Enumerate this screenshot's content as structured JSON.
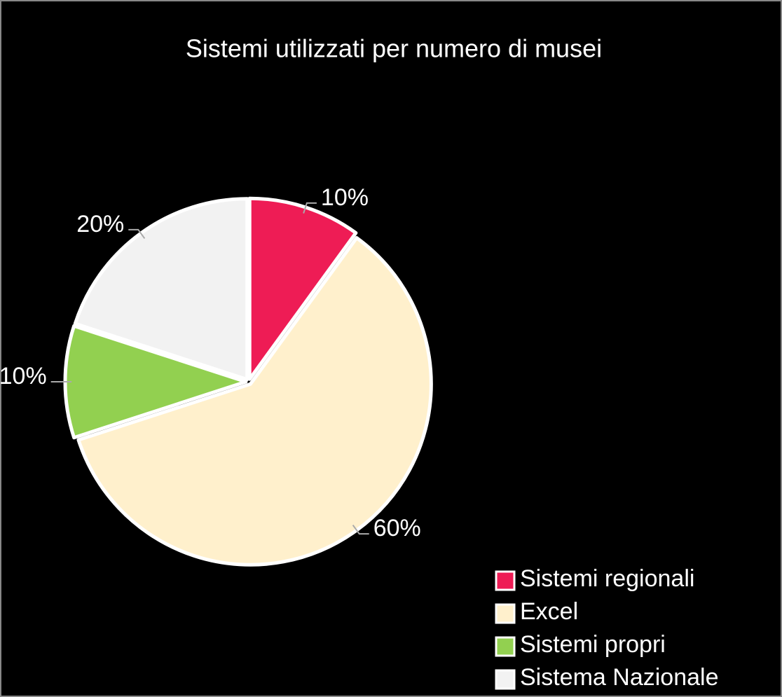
{
  "chart_data": {
    "type": "pie",
    "title": "Sistemi utilizzati per numero di musei",
    "categories": [
      "Sistemi regionali",
      "Excel",
      "Sistemi propri",
      "Sistema Nazionale"
    ],
    "values": [
      10,
      60,
      10,
      20
    ],
    "value_labels": [
      "10%",
      "60%",
      "10%",
      "20%"
    ],
    "colors": [
      "#ee1c55",
      "#fff0cc",
      "#92d050",
      "#f2f2f2"
    ],
    "legend": "bottom-right"
  }
}
